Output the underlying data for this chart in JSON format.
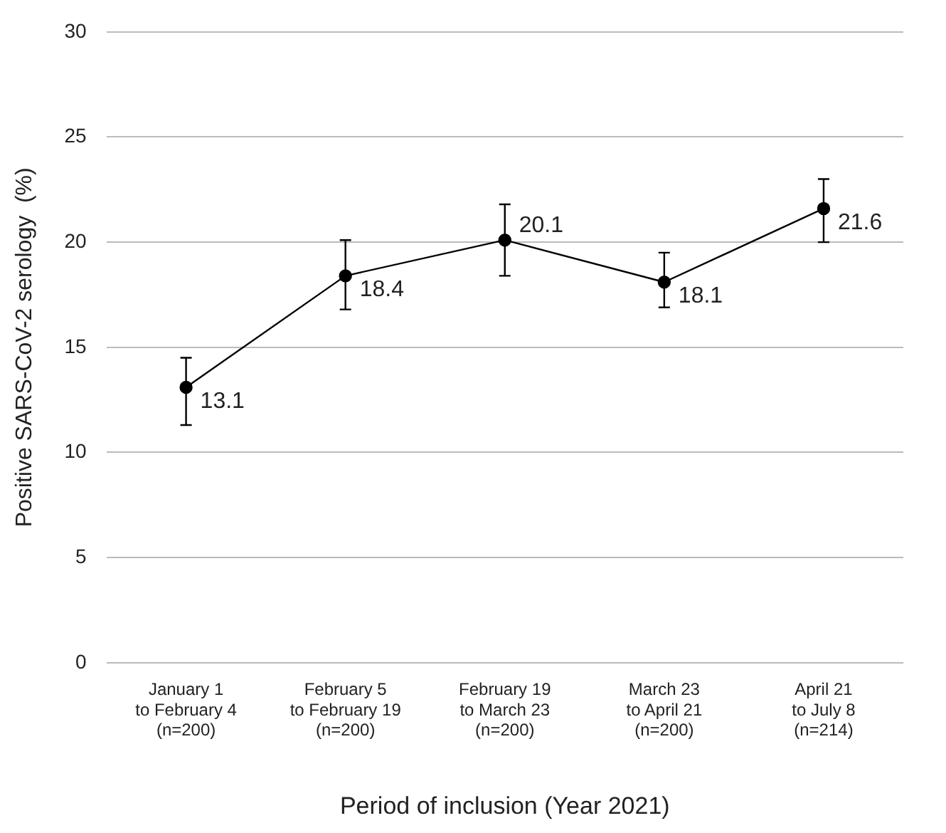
{
  "chart_data": {
    "type": "line",
    "xlabel": "Period of inclusion (Year 2021)",
    "ylabel": "Positive SARS-CoV-2 serology  (%)",
    "categories": [
      "January 1\nto February 4\n(n=200)",
      "February 5\nto February 19\n(n=200)",
      "February 19\nto March 23\n(n=200)",
      "March 23\nto April 21\n(n=200)",
      "April 21\nto July 8\n(n=214)"
    ],
    "series": [
      {
        "color": "#000000",
        "values": [
          13.1,
          18.4,
          20.1,
          18.1,
          21.6
        ],
        "errors": [
          [
            11.3,
            14.5
          ],
          [
            16.8,
            20.1
          ],
          [
            18.4,
            21.8
          ],
          [
            16.9,
            19.5
          ],
          [
            20.0,
            23.0
          ]
        ]
      }
    ],
    "ylim": [
      0,
      30
    ],
    "yticks": [
      0,
      5,
      10,
      15,
      20,
      25,
      30
    ],
    "grid": "y",
    "legend": false,
    "marker": "circle",
    "line_style": "solid",
    "data_labels": true
  }
}
